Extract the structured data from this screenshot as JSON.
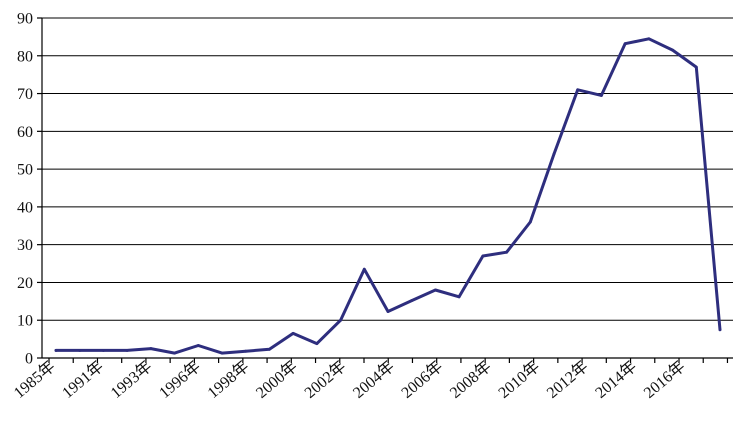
{
  "chart_data": {
    "type": "line",
    "title": "",
    "xlabel": "",
    "ylabel": "",
    "ylim": [
      0,
      90
    ],
    "yticks": [
      0,
      10,
      20,
      30,
      40,
      50,
      60,
      70,
      80,
      90
    ],
    "grid": true,
    "line_color": "#2e2e7e",
    "x_tick_labels": [
      "1985年",
      "1991年",
      "1993年",
      "1996年",
      "1998年",
      "2000年",
      "2002年",
      "2004年",
      "2006年",
      "2008年",
      "2010年",
      "2012年",
      "2014年",
      "2016年"
    ],
    "series": [
      {
        "values": [
          2,
          2,
          2,
          2,
          2.5,
          1.3,
          3.3,
          1.3,
          1.8,
          2.3,
          6.5,
          3.8,
          10,
          23.5,
          12.3,
          15.2,
          18,
          16.2,
          27,
          28,
          36,
          54,
          71,
          69.5,
          83.2,
          84.5,
          81.5,
          77,
          7.5
        ]
      }
    ]
  }
}
